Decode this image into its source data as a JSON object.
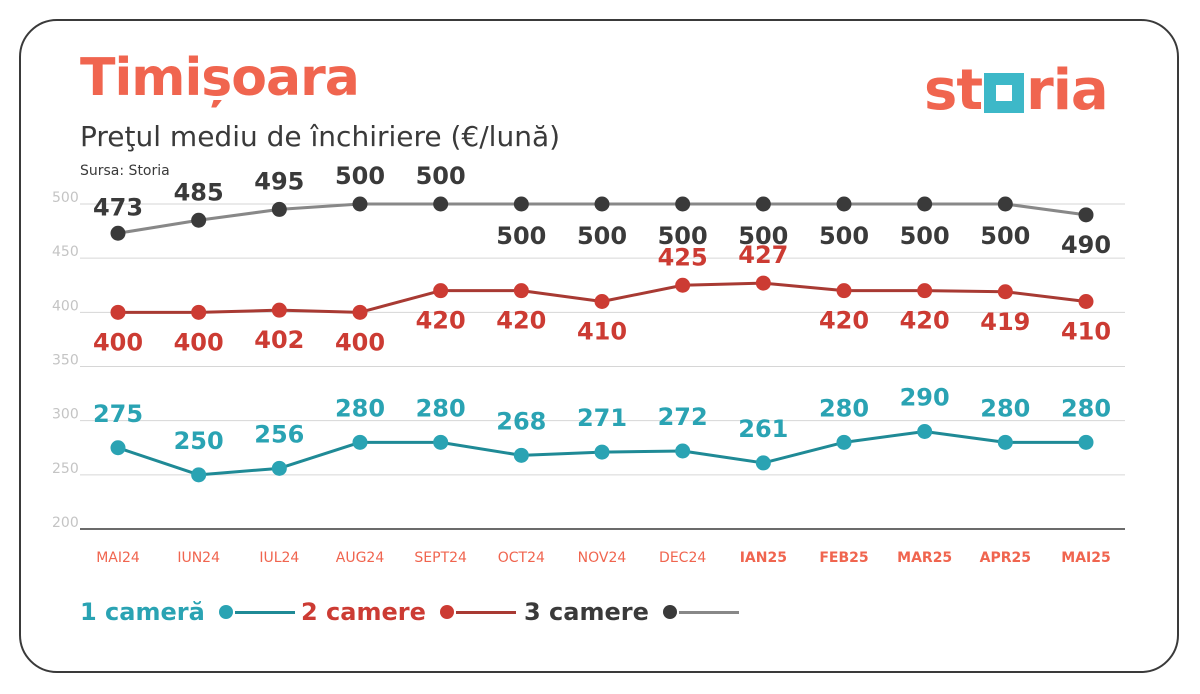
{
  "header": {
    "title": "Timișoara",
    "subtitle": "Preţul mediu de închiriere (€/lună)",
    "source": "Sursa: Storia",
    "logo_left": "st",
    "logo_right": "ria"
  },
  "legend": {
    "items": [
      {
        "label": "1 cameră",
        "color": "#2aa3b3"
      },
      {
        "label": "2 camere",
        "color": "#cc3b33"
      },
      {
        "label": "3 camere",
        "color": "#3a3a3a",
        "line_color": "#888888"
      }
    ]
  },
  "chart_data": {
    "type": "line",
    "categories": [
      "MAI24",
      "IUN24",
      "IUL24",
      "AUG24",
      "SEPT24",
      "OCT24",
      "NOV24",
      "DEC24",
      "IAN25",
      "FEB25",
      "MAR25",
      "APR25",
      "MAI25"
    ],
    "ylim": [
      200,
      500
    ],
    "yticks": [
      200,
      250,
      300,
      350,
      400,
      450,
      500
    ],
    "grid": true,
    "series": [
      {
        "name": "1 cameră",
        "color": "#2aa3b3",
        "line_color": "#1f8a96",
        "label_color": "#2aa3b3",
        "values": [
          275,
          250,
          256,
          280,
          280,
          268,
          271,
          272,
          261,
          280,
          290,
          280,
          280
        ]
      },
      {
        "name": "2 camere",
        "color": "#cc3b33",
        "line_color": "#a83a33",
        "label_color": "#cc3b33",
        "values": [
          400,
          400,
          402,
          400,
          420,
          420,
          410,
          425,
          427,
          420,
          420,
          419,
          410
        ]
      },
      {
        "name": "3 camere",
        "color": "#3a3a3a",
        "line_color": "#888888",
        "label_color": "#3a3a3a",
        "values": [
          473,
          485,
          495,
          500,
          500,
          500,
          500,
          500,
          500,
          500,
          500,
          500,
          490
        ]
      }
    ]
  }
}
